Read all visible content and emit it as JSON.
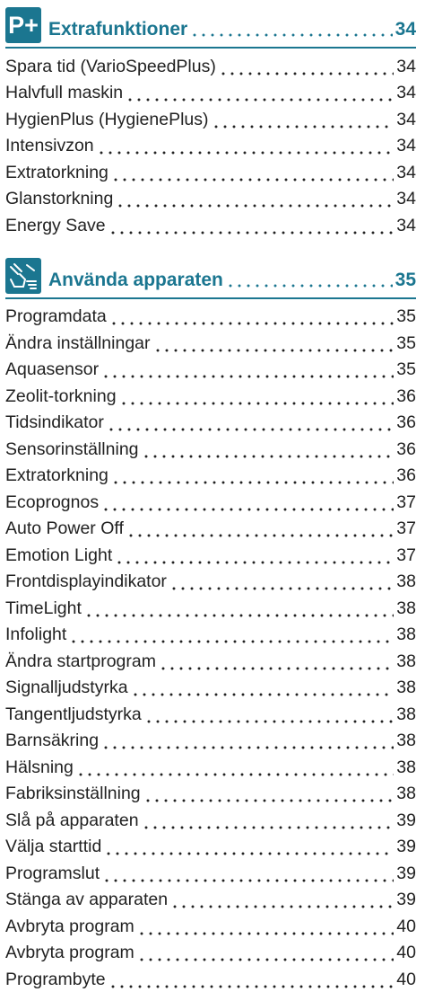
{
  "sections": [
    {
      "icon": "P+",
      "title": "Extrafunktioner",
      "page": "34",
      "entries": [
        {
          "label": "Spara tid (VarioSpeedPlus)",
          "page": "34"
        },
        {
          "label": "Halvfull maskin",
          "page": "34"
        },
        {
          "label": "HygienPlus (HygienePlus)",
          "page": "34"
        },
        {
          "label": "Intensivzon",
          "page": "34"
        },
        {
          "label": "Extratorkning",
          "page": "34"
        },
        {
          "label": "Glanstorkning",
          "page": "34"
        },
        {
          "label": "Energy Save",
          "page": "34"
        }
      ]
    },
    {
      "title": "Använda apparaten",
      "page": "35",
      "entries": [
        {
          "label": "Programdata",
          "page": "35"
        },
        {
          "label": "Ändra inställningar",
          "page": "35"
        },
        {
          "label": "Aquasensor",
          "page": "35"
        },
        {
          "label": "Zeolit-torkning",
          "page": "36"
        },
        {
          "label": "Tidsindikator",
          "page": "36"
        },
        {
          "label": "Sensorinställning",
          "page": "36"
        },
        {
          "label": "Extratorkning",
          "page": "36"
        },
        {
          "label": "Ecoprognos",
          "page": "37"
        },
        {
          "label": "Auto Power Off",
          "page": "37"
        },
        {
          "label": "Emotion Light",
          "page": "37"
        },
        {
          "label": "Frontdisplayindikator",
          "page": "38"
        },
        {
          "label": "TimeLight",
          "page": "38"
        },
        {
          "label": "Infolight",
          "page": "38"
        },
        {
          "label": "Ändra startprogram",
          "page": "38"
        },
        {
          "label": "Signalljudstyrka",
          "page": "38"
        },
        {
          "label": "Tangentljudstyrka",
          "page": "38"
        },
        {
          "label": "Barnsäkring",
          "page": "38"
        },
        {
          "label": "Hälsning",
          "page": "38"
        },
        {
          "label": "Fabriksinställning",
          "page": "38"
        },
        {
          "label": "Slå på apparaten",
          "page": "39"
        },
        {
          "label": "Välja starttid",
          "page": "39"
        },
        {
          "label": "Programslut",
          "page": "39"
        },
        {
          "label": "Stänga av apparaten",
          "page": "39"
        },
        {
          "label": "Avbryta program",
          "page": "40"
        },
        {
          "label": "Avbryta program",
          "page": "40"
        },
        {
          "label": "Programbyte",
          "page": "40"
        }
      ]
    }
  ]
}
